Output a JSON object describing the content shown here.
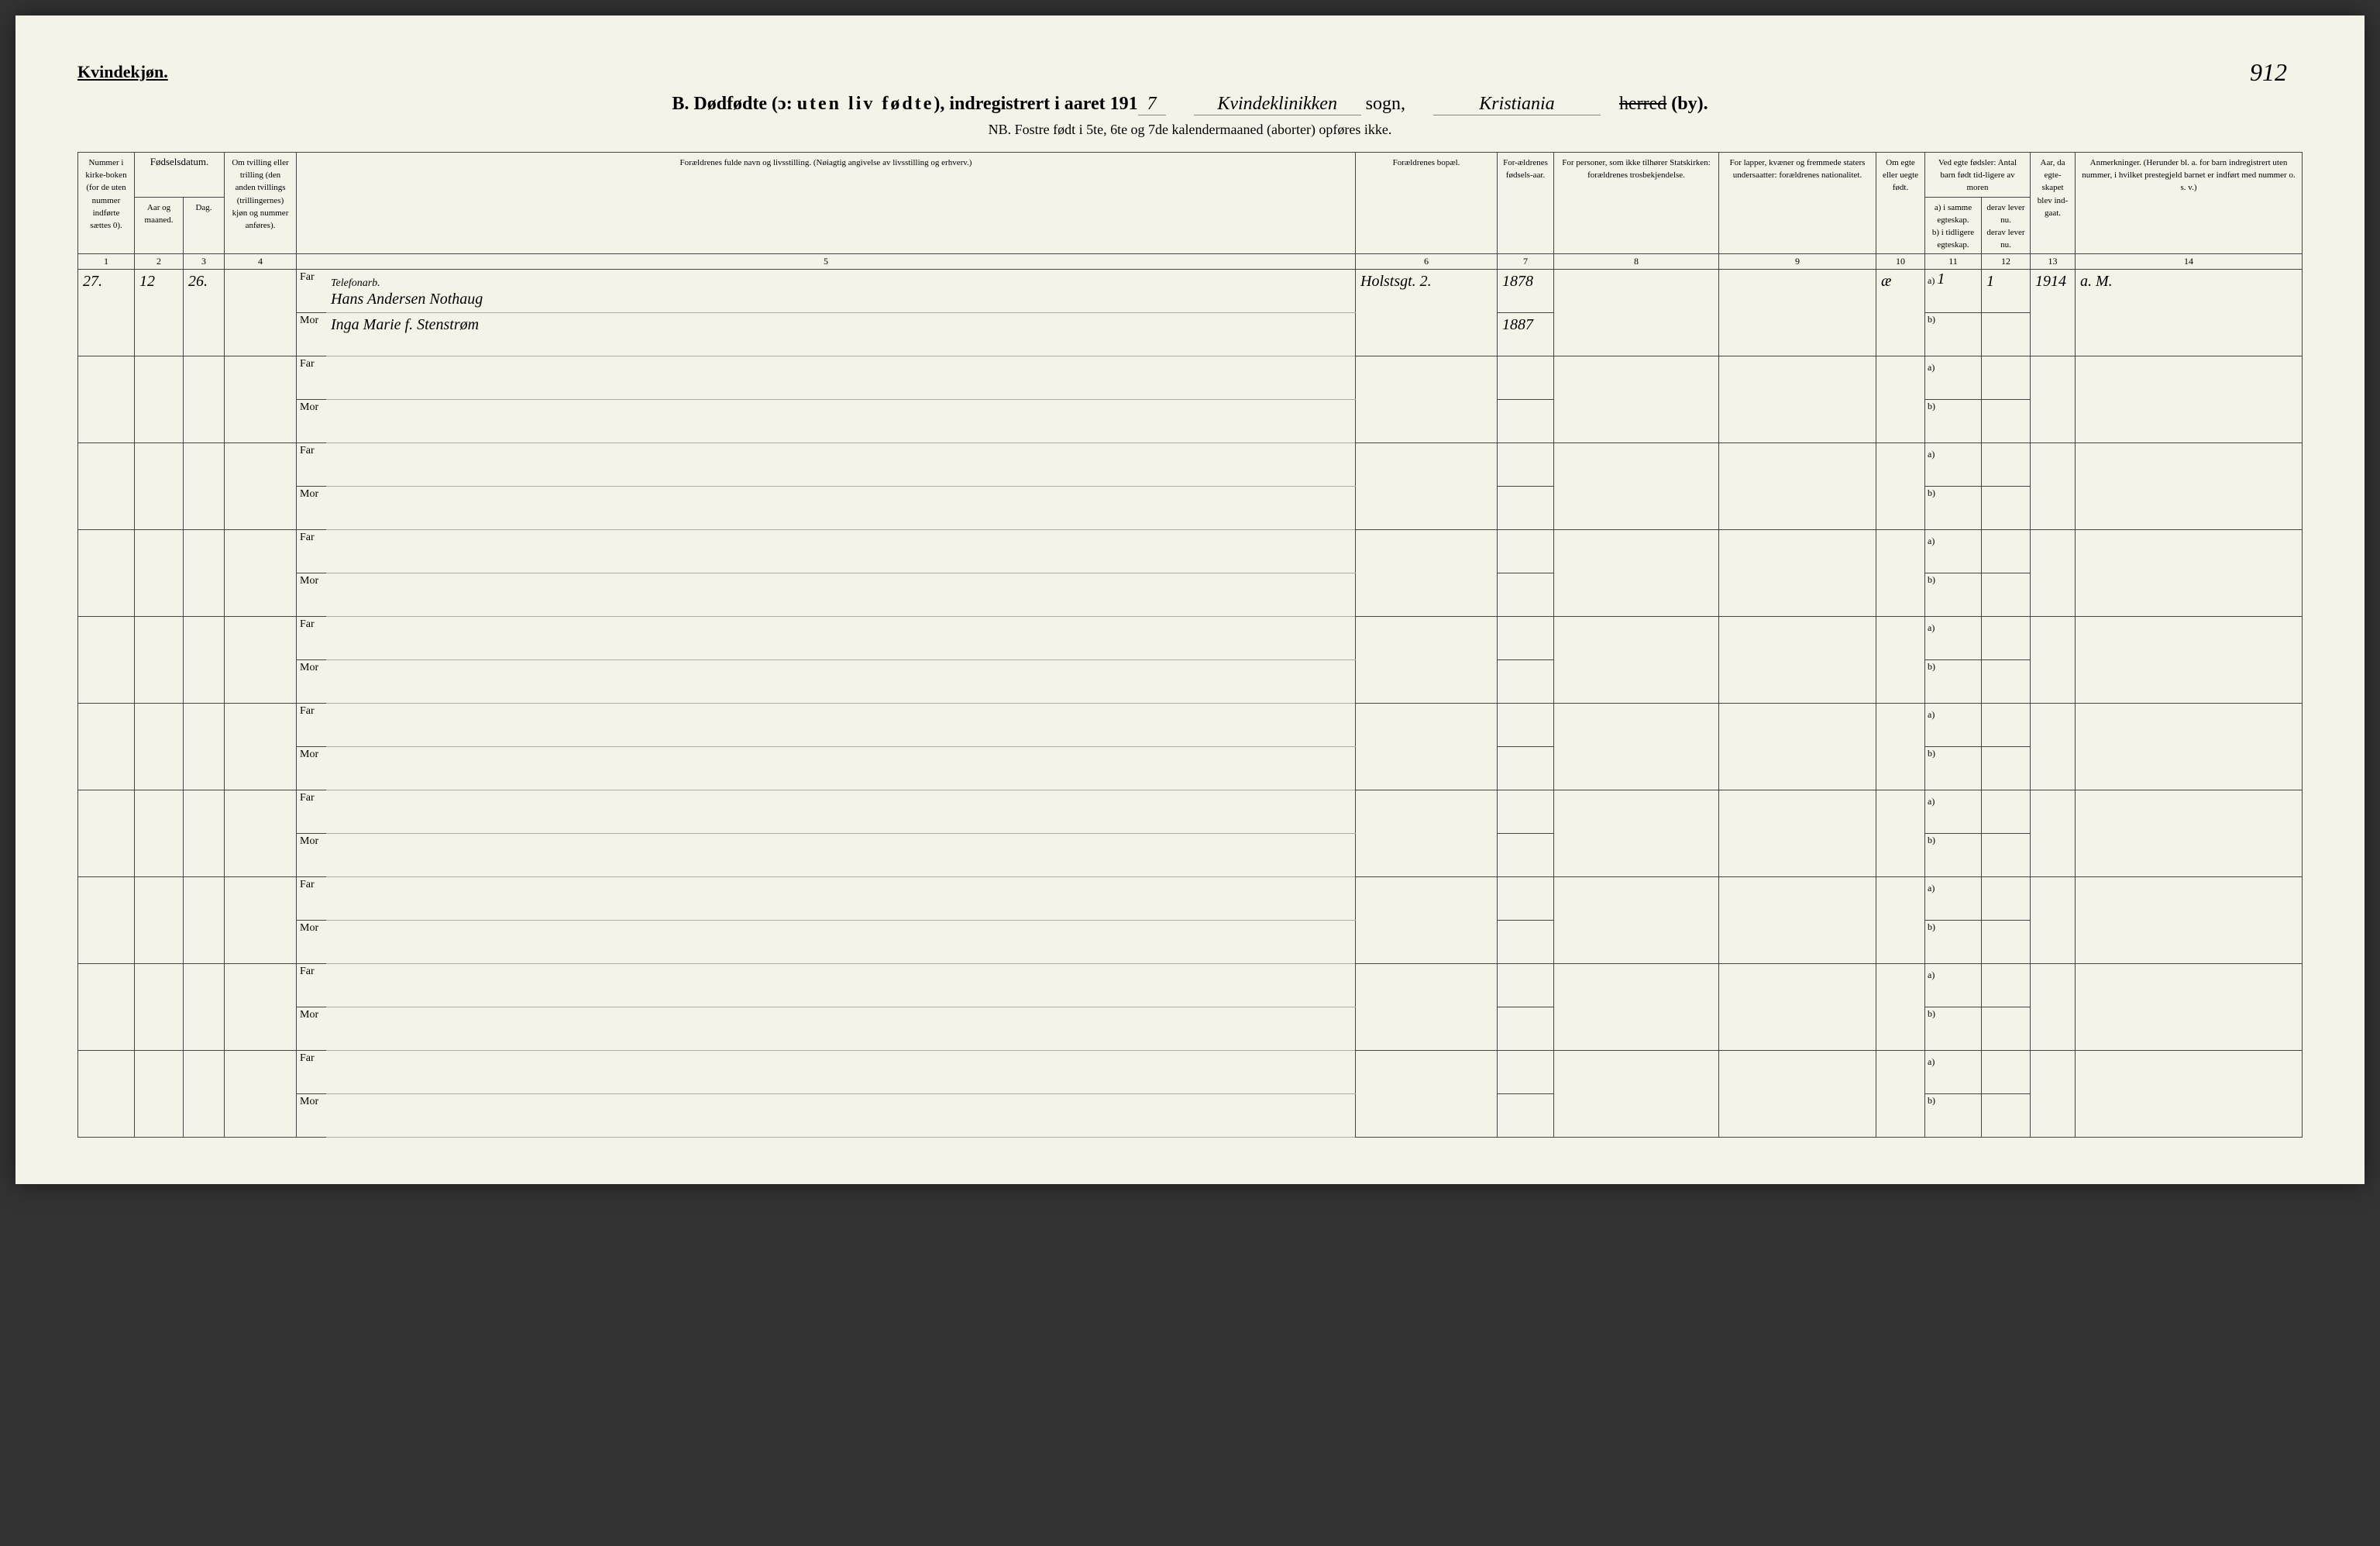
{
  "gender": "Kvindekjøn.",
  "page_number": "912",
  "title": {
    "prefix": "B.  Dødfødte (ɔ:  ",
    "spaced": "uten liv fødte",
    "suffix": "), indregistrert i aaret 191",
    "year_digit": "7",
    "sogn_hw": "Kvindeklinikken",
    "sogn_label": "sogn,",
    "by_hw": "Kristiania",
    "herred_strike": "herred",
    "by_label": "(by)."
  },
  "nb": "NB.  Fostre født i 5te, 6te og 7de kalendermaaned (aborter) opføres ikke.",
  "headers": {
    "c1": "Nummer i kirke-boken (for de uten nummer indførte sættes 0).",
    "c2": "Fødselsdatum.",
    "c2a": "Aar og maaned.",
    "c2b": "Dag.",
    "c3": "Om tvilling eller trilling (den anden tvillings (trillingernes) kjøn og nummer anføres).",
    "c4": "Forældrenes fulde navn og livsstilling. (Nøiagtig angivelse av livsstilling og erhverv.)",
    "c5": "Forældrenes bopæl.",
    "c6": "For-ældrenes fødsels-aar.",
    "c7": "For personer, som ikke tilhører Statskirken: forældrenes trosbekjendelse.",
    "c8": "For lapper, kvæner og fremmede staters undersaatter: forældrenes nationalitet.",
    "c9": "Om egte eller uegte født.",
    "c10": "Ved egte fødsler: Antal barn født tid-ligere av moren",
    "c10a": "a) i samme egteskap.",
    "c10b": "b) i tidligere egteskap.",
    "c10c": "derav lever nu.",
    "c10d": "derav lever nu.",
    "c11": "Aar, da egte-skapet blev ind-gaat.",
    "c12": "Anmerkninger. (Herunder bl. a. for barn indregistrert uten nummer, i hvilket prestegjeld barnet er indført med nummer o. s. v.)"
  },
  "colnums": [
    "1",
    "2",
    "3",
    "4",
    "5",
    "6",
    "7",
    "8",
    "9",
    "10",
    "11",
    "12",
    "13",
    "14"
  ],
  "far": "Far",
  "mor": "Mor",
  "a_lbl": "a)",
  "b_lbl": "b)",
  "entry": {
    "num": "27.",
    "aar": "12",
    "dag": "26.",
    "far_occ": "Telefonarb.",
    "far_name": "Hans Andersen Nothaug",
    "mor_name": "Inga Marie f. Stenstrøm",
    "bopael": "Holstsgt. 2.",
    "far_year": "1878",
    "mor_year": "1887",
    "egte": "æ",
    "a_val": "1",
    "c_val": "1",
    "year": "1914",
    "anm": "a. M."
  }
}
